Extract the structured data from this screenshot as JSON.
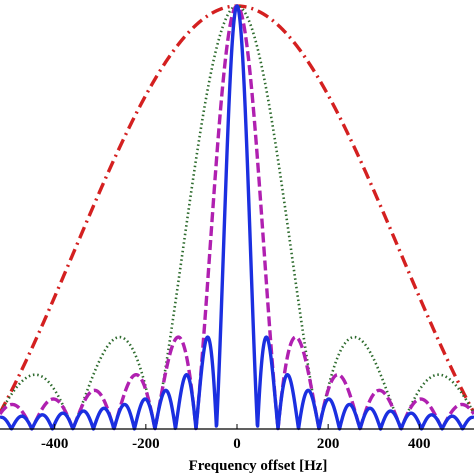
{
  "chart_data": {
    "type": "line",
    "title": "",
    "xlabel": "Frequency offset [Hz]",
    "ylabel": "",
    "xlim": [
      -520,
      520
    ],
    "ylim": [
      0,
      1
    ],
    "x_ticks": [
      -400,
      -200,
      0,
      200,
      400
    ],
    "x_tick_labels": [
      "-400",
      "-200",
      "0",
      "200",
      "400"
    ],
    "grid": false,
    "legend": "none",
    "series": [
      {
        "style": "dash-dot",
        "color": "#d42020",
        "mainlobe_null_hz": 540,
        "x": [
          -520,
          -400,
          -200,
          0,
          200,
          400,
          520
        ],
        "y": [
          0.04,
          0.38,
          0.83,
          1.0,
          0.83,
          0.38,
          0.04
        ]
      },
      {
        "style": "dotted",
        "color": "#2e6b2e",
        "mainlobe_null_hz": 180,
        "x": [
          -490,
          -290,
          -180,
          -90,
          0,
          90,
          180,
          290,
          490
        ],
        "y": [
          0.16,
          0.21,
          0.0,
          0.78,
          1.0,
          0.78,
          0.0,
          0.21,
          0.16
        ]
      },
      {
        "style": "dashed",
        "color": "#b020b0",
        "mainlobe_null_hz": 90,
        "x": [
          -380,
          -140,
          -90,
          -45,
          0,
          45,
          90,
          140,
          380
        ],
        "y": [
          0.08,
          0.13,
          0.0,
          0.75,
          1.0,
          0.75,
          0.0,
          0.13,
          0.08
        ]
      },
      {
        "style": "solid",
        "color": "#1b2fe0",
        "mainlobe_null_hz": 45,
        "x": [
          -400,
          -70,
          -45,
          -22,
          0,
          22,
          45,
          70,
          400
        ],
        "y": [
          0.025,
          0.13,
          0.0,
          0.65,
          1.0,
          0.65,
          0.0,
          0.13,
          0.025
        ]
      }
    ]
  }
}
